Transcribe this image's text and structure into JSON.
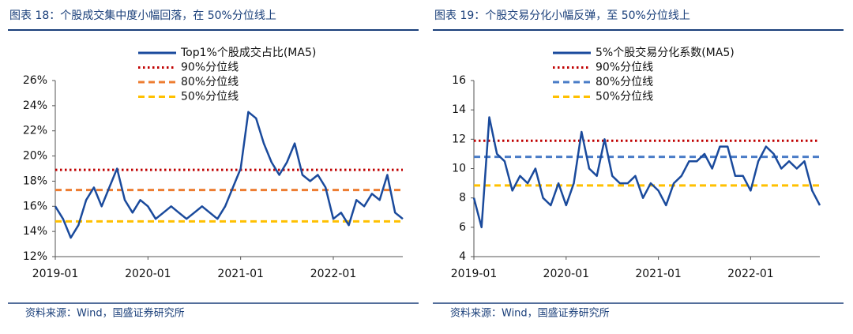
{
  "chart_data": [
    {
      "type": "line",
      "title": "图表 18：个股成交集中度小幅回落，在 50%分位线上",
      "source": "资料来源：Wind，国盛证券研究所",
      "x": [
        "2019-01",
        "2019-02",
        "2019-03",
        "2019-04",
        "2019-05",
        "2019-06",
        "2019-07",
        "2019-08",
        "2019-09",
        "2019-10",
        "2019-11",
        "2019-12",
        "2020-01",
        "2020-02",
        "2020-03",
        "2020-04",
        "2020-05",
        "2020-06",
        "2020-07",
        "2020-08",
        "2020-09",
        "2020-10",
        "2020-11",
        "2020-12",
        "2021-01",
        "2021-02",
        "2021-03",
        "2021-04",
        "2021-05",
        "2021-06",
        "2021-07",
        "2021-08",
        "2021-09",
        "2021-10",
        "2021-11",
        "2021-12",
        "2022-01",
        "2022-02",
        "2022-03",
        "2022-04",
        "2022-05",
        "2022-06",
        "2022-07",
        "2022-08",
        "2022-09",
        "2022-10"
      ],
      "series": [
        {
          "name": "Top1%个股成交占比(MA5)",
          "color": "#1a4a9c",
          "values": [
            16.0,
            15.0,
            13.5,
            14.5,
            16.5,
            17.5,
            16.0,
            17.5,
            19.0,
            16.5,
            15.5,
            16.5,
            16.0,
            15.0,
            15.5,
            16.0,
            15.5,
            15.0,
            15.5,
            16.0,
            15.5,
            15.0,
            16.0,
            17.5,
            19.0,
            23.5,
            23.0,
            21.0,
            19.5,
            18.5,
            19.5,
            21.0,
            18.5,
            18.0,
            18.5,
            17.5,
            15.0,
            15.5,
            14.5,
            16.5,
            16.0,
            17.0,
            16.5,
            18.5,
            15.5,
            15.0
          ]
        }
      ],
      "reference_lines": [
        {
          "name": "90%分位线",
          "value": 18.9,
          "color": "#c00000",
          "style": "dotted"
        },
        {
          "name": "80%分位线",
          "value": 17.3,
          "color": "#ed7d31",
          "style": "dashed"
        },
        {
          "name": "50%分位线",
          "value": 14.8,
          "color": "#ffc000",
          "style": "dashed"
        }
      ],
      "ylim": [
        12,
        26
      ],
      "yticks": [
        {
          "value": 12,
          "label": "12%"
        },
        {
          "value": 14,
          "label": "14%"
        },
        {
          "value": 16,
          "label": "16%"
        },
        {
          "value": 18,
          "label": "18%"
        },
        {
          "value": 20,
          "label": "20%"
        },
        {
          "value": 22,
          "label": "22%"
        },
        {
          "value": 24,
          "label": "24%"
        },
        {
          "value": 26,
          "label": "26%"
        }
      ],
      "xticks": [
        "2019-01",
        "2020-01",
        "2021-01",
        "2022-01"
      ]
    },
    {
      "type": "line",
      "title": "图表 19：个股交易分化小幅反弹，至 50%分位线上",
      "source": "资料来源：Wind，国盛证券研究所",
      "x": [
        "2019-01",
        "2019-02",
        "2019-03",
        "2019-04",
        "2019-05",
        "2019-06",
        "2019-07",
        "2019-08",
        "2019-09",
        "2019-10",
        "2019-11",
        "2019-12",
        "2020-01",
        "2020-02",
        "2020-03",
        "2020-04",
        "2020-05",
        "2020-06",
        "2020-07",
        "2020-08",
        "2020-09",
        "2020-10",
        "2020-11",
        "2020-12",
        "2021-01",
        "2021-02",
        "2021-03",
        "2021-04",
        "2021-05",
        "2021-06",
        "2021-07",
        "2021-08",
        "2021-09",
        "2021-10",
        "2021-11",
        "2021-12",
        "2022-01",
        "2022-02",
        "2022-03",
        "2022-04",
        "2022-05",
        "2022-06",
        "2022-07",
        "2022-08",
        "2022-09",
        "2022-10"
      ],
      "series": [
        {
          "name": "5%个股交易分化系数(MA5)",
          "color": "#1a4a9c",
          "values": [
            8.0,
            6.0,
            13.5,
            11.0,
            10.5,
            8.5,
            9.5,
            9.0,
            10.0,
            8.0,
            7.5,
            9.0,
            7.5,
            9.0,
            12.5,
            10.0,
            9.5,
            12.0,
            9.5,
            9.0,
            9.0,
            9.5,
            8.0,
            9.0,
            8.5,
            7.5,
            9.0,
            9.5,
            10.5,
            10.5,
            11.0,
            10.0,
            11.5,
            11.5,
            9.5,
            9.5,
            8.5,
            10.5,
            11.5,
            11.0,
            10.0,
            10.5,
            10.0,
            10.5,
            8.5,
            7.5
          ]
        }
      ],
      "reference_lines": [
        {
          "name": "90%分位线",
          "value": 11.9,
          "color": "#c00000",
          "style": "dotted"
        },
        {
          "name": "80%分位线",
          "value": 10.8,
          "color": "#4a7cc7",
          "style": "dashed"
        },
        {
          "name": "50%分位线",
          "value": 8.85,
          "color": "#ffc000",
          "style": "dashed"
        }
      ],
      "ylim": [
        4,
        16
      ],
      "yticks": [
        4,
        6,
        8,
        10,
        12,
        14,
        16
      ],
      "xticks": [
        "2019-01",
        "2020-01",
        "2021-01",
        "2022-01"
      ]
    }
  ]
}
